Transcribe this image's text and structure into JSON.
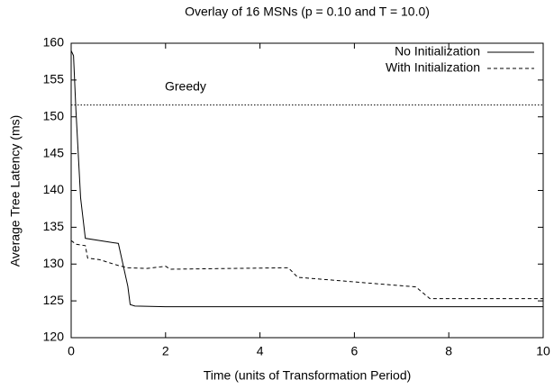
{
  "chart_data": {
    "type": "line",
    "title": "Overlay of 16 MSNs (p = 0.10 and T = 10.0)",
    "xlabel": "Time (units of Transformation Period)",
    "ylabel": "Average Tree Latency (ms)",
    "xlim": [
      0,
      10
    ],
    "xticks": [
      0,
      2,
      4,
      6,
      8,
      10
    ],
    "ylim": [
      120,
      160
    ],
    "yticks": [
      120,
      125,
      130,
      135,
      140,
      145,
      150,
      155,
      160
    ],
    "legend": "top-right",
    "series": [
      {
        "name": "No Initialization",
        "color": "#000000",
        "dash": "solid",
        "x": [
          0,
          0.05,
          0.1,
          0.2,
          0.3,
          1.0,
          1.2,
          1.25,
          1.35,
          2,
          4,
          6,
          8,
          10
        ],
        "values": [
          159,
          158.3,
          151,
          139,
          133.5,
          132.8,
          127,
          124.5,
          124.3,
          124.2,
          124.2,
          124.2,
          124.2,
          124.2
        ]
      },
      {
        "name": "With Initialization",
        "color": "#000000",
        "dash": "dashed",
        "x": [
          0,
          0.1,
          0.3,
          0.35,
          0.6,
          1.0,
          1.2,
          1.6,
          2.0,
          2.1,
          4.6,
          4.8,
          7.3,
          7.6,
          10
        ],
        "values": [
          133.2,
          132.7,
          132.5,
          130.8,
          130.6,
          129.8,
          129.5,
          129.4,
          129.7,
          129.3,
          129.5,
          128.2,
          126.9,
          125.3,
          125.3
        ]
      }
    ],
    "reference_line": {
      "label": "Greedy",
      "value": 151.6,
      "dash": "dotted",
      "color": "#000000"
    }
  }
}
